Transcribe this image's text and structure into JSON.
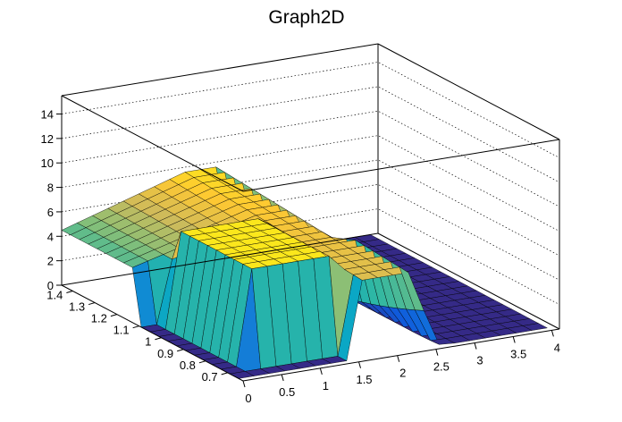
{
  "chart_data": {
    "type": "surface",
    "title": "Graph2D",
    "xlabel": "",
    "ylabel": "",
    "zlabel": "",
    "xlim": [
      0,
      4.1
    ],
    "ylim": [
      0.63,
      1.45
    ],
    "zlim": [
      0,
      15.5
    ],
    "x_ticks": [
      "0",
      "0.5",
      "1",
      "1.5",
      "2",
      "2.5",
      "3",
      "3.5",
      "4"
    ],
    "y_ticks": [
      "0.7",
      "0.8",
      "0.9",
      "1",
      "1.1",
      "1.2",
      "1.3",
      "1.4"
    ],
    "z_ticks": [
      "0",
      "2",
      "4",
      "6",
      "8",
      "10",
      "12",
      "14"
    ],
    "x_tick_values": [
      0,
      0.5,
      1,
      1.5,
      2,
      2.5,
      3,
      3.5,
      4
    ],
    "y_tick_values": [
      0.7,
      0.8,
      0.9,
      1.0,
      1.1,
      1.2,
      1.3,
      1.4
    ],
    "z_tick_values": [
      0,
      2,
      4,
      6,
      8,
      10,
      12,
      14
    ],
    "grid": true,
    "palette": [
      "#352a87",
      "#0f5cdd",
      "#1481d6",
      "#06a4ca",
      "#2eb7a4",
      "#87bf77",
      "#d1bb59",
      "#fec832",
      "#f9fb0e"
    ],
    "surface": {
      "x_step": 0.2,
      "y_step": 0.04,
      "description_keys": [
        "plateau",
        "drop",
        "floor"
      ],
      "plateau_height": [
        4.5,
        7.6
      ],
      "pillar_x_range": [
        0.3,
        1.5
      ],
      "pillar_height": 7.8,
      "drop_x": [
        2.0,
        2.3
      ],
      "floor_height": 0
    }
  }
}
